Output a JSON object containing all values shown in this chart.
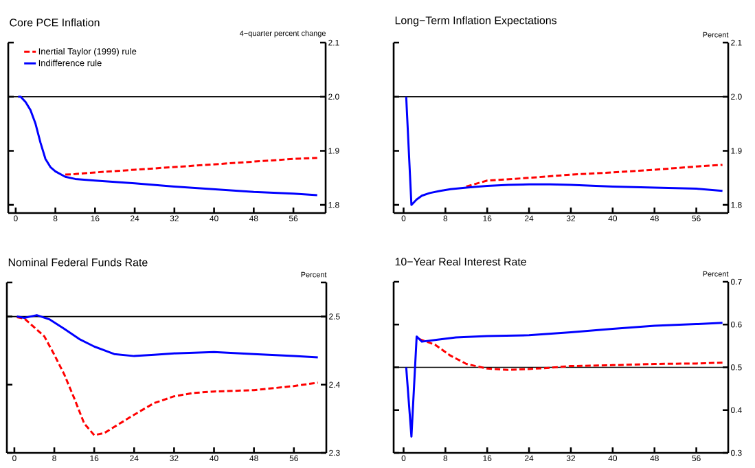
{
  "chart_data": [
    {
      "type": "line",
      "title": "Core PCE Inflation",
      "ylabel": "4−quarter percent change",
      "legend": "top left",
      "xlim": [
        -1.5,
        62.5
      ],
      "xticks": [
        0,
        8,
        16,
        24,
        32,
        40,
        48,
        56
      ],
      "ylim": [
        1.785,
        2.1
      ],
      "yticks": [
        {
          "value": 1.8,
          "label": "1.8"
        },
        {
          "value": 1.9,
          "label": "1.9"
        },
        {
          "value": 2.0,
          "label": "2.0"
        },
        {
          "value": 2.1,
          "label": "2.1"
        }
      ],
      "ref_lines": [
        {
          "axis": "y",
          "value": 2.0,
          "color": "#000000"
        }
      ],
      "series": [
        {
          "name": "Inertial Taylor (1999) rule",
          "color": "#ff0000",
          "line_style": "dashed",
          "x": [
            10,
            12,
            16,
            24,
            32,
            40,
            48,
            56,
            60.8
          ],
          "values": [
            1.856,
            1.857,
            1.86,
            1.865,
            1.87,
            1.875,
            1.88,
            1.885,
            1.887
          ]
        },
        {
          "name": "Indifference rule",
          "color": "#0000ff",
          "line_style": "solid",
          "x": [
            0.5,
            1,
            2,
            3,
            4,
            5,
            6,
            7,
            8,
            10,
            12,
            16,
            24,
            32,
            40,
            48,
            56,
            60.8
          ],
          "values": [
            2.0,
            2.0,
            1.99,
            1.975,
            1.95,
            1.915,
            1.885,
            1.87,
            1.862,
            1.852,
            1.848,
            1.845,
            1.84,
            1.834,
            1.829,
            1.824,
            1.821,
            1.818
          ]
        }
      ]
    },
    {
      "type": "line",
      "title": "Long−Term Inflation Expectations",
      "ylabel": "Percent",
      "xlim": [
        -1.9,
        62.1
      ],
      "xticks": [
        0,
        8,
        16,
        24,
        32,
        40,
        48,
        56
      ],
      "ylim": [
        1.785,
        2.1
      ],
      "yticks": [
        {
          "value": 1.8,
          "label": "1.8"
        },
        {
          "value": 1.9,
          "label": "1.9"
        },
        {
          "value": 2.0,
          "label": "2.0"
        },
        {
          "value": 2.1,
          "label": "2.1"
        }
      ],
      "ref_lines": [
        {
          "axis": "y",
          "value": 2.0,
          "color": "#000000"
        }
      ],
      "series": [
        {
          "color": "#ff0000",
          "line_style": "dashed",
          "x": [
            12,
            16,
            24,
            32,
            40,
            48,
            56,
            61
          ],
          "values": [
            1.834,
            1.845,
            1.85,
            1.856,
            1.86,
            1.865,
            1.871,
            1.874
          ]
        },
        {
          "color": "#0000ff",
          "line_style": "solid",
          "x": [
            0.5,
            1.5,
            2.5,
            3.5,
            5,
            7,
            9,
            12,
            16,
            20,
            24,
            28,
            32,
            40,
            48,
            56,
            61
          ],
          "values": [
            2.0,
            1.8,
            1.81,
            1.817,
            1.822,
            1.826,
            1.829,
            1.832,
            1.835,
            1.837,
            1.838,
            1.838,
            1.837,
            1.834,
            1.832,
            1.83,
            1.826
          ]
        }
      ]
    },
    {
      "type": "line",
      "title": "Nominal Federal Funds Rate",
      "ylabel": "Percent",
      "xlim": [
        -1.5,
        62.5
      ],
      "xticks": [
        0,
        8,
        16,
        24,
        32,
        40,
        48,
        56
      ],
      "ylim": [
        2.3,
        2.55
      ],
      "yticks": [
        {
          "value": 2.3,
          "label": "2.3"
        },
        {
          "value": 2.4,
          "label": "2.4"
        },
        {
          "value": 2.5,
          "label": "2.5"
        },
        {
          "value": 2.55,
          "label": null
        }
      ],
      "ref_lines": [
        {
          "axis": "y",
          "value": 2.5,
          "color": "#000000"
        }
      ],
      "series": [
        {
          "color": "#ff0000",
          "line_style": "dashed",
          "x": [
            0.5,
            2,
            4,
            6,
            8,
            10,
            12,
            14,
            16,
            18,
            20,
            24,
            28,
            32,
            36,
            40,
            48,
            56,
            60.8
          ],
          "values": [
            2.499,
            2.497,
            2.484,
            2.471,
            2.444,
            2.415,
            2.38,
            2.343,
            2.326,
            2.329,
            2.338,
            2.356,
            2.373,
            2.383,
            2.388,
            2.39,
            2.392,
            2.398,
            2.403
          ]
        },
        {
          "color": "#0000ff",
          "line_style": "solid",
          "x": [
            0.5,
            2,
            4.5,
            7,
            10,
            13,
            16,
            20,
            24,
            28,
            32,
            40,
            48,
            56,
            60.8
          ],
          "values": [
            2.5,
            2.498,
            2.502,
            2.496,
            2.482,
            2.467,
            2.456,
            2.445,
            2.442,
            2.444,
            2.446,
            2.448,
            2.445,
            2.442,
            2.44
          ]
        }
      ]
    },
    {
      "type": "line",
      "title": "10−Year Real Interest Rate",
      "ylabel": "Percent",
      "xlim": [
        -1.9,
        62.1
      ],
      "xticks": [
        0,
        8,
        16,
        24,
        32,
        40,
        48,
        56
      ],
      "ylim": [
        0.3,
        0.7
      ],
      "yticks": [
        {
          "value": 0.3,
          "label": "0.3"
        },
        {
          "value": 0.4,
          "label": "0.4"
        },
        {
          "value": 0.5,
          "label": "0.5"
        },
        {
          "value": 0.6,
          "label": "0.6"
        },
        {
          "value": 0.7,
          "label": "0.7"
        }
      ],
      "ref_lines": [
        {
          "axis": "y",
          "value": 0.5,
          "color": "#000000"
        }
      ],
      "series": [
        {
          "color": "#ff0000",
          "line_style": "dashed",
          "x": [
            3,
            6,
            9,
            12,
            16,
            20,
            24,
            28,
            32,
            40,
            48,
            56,
            61
          ],
          "values": [
            0.566,
            0.553,
            0.527,
            0.508,
            0.497,
            0.494,
            0.496,
            0.499,
            0.503,
            0.505,
            0.508,
            0.509,
            0.511
          ]
        },
        {
          "color": "#0000ff",
          "line_style": "solid",
          "x": [
            0.5,
            1.5,
            2.5,
            3.5,
            6,
            10,
            16,
            24,
            32,
            40,
            48,
            56,
            61
          ],
          "values": [
            0.5,
            0.338,
            0.572,
            0.56,
            0.564,
            0.57,
            0.573,
            0.575,
            0.582,
            0.59,
            0.597,
            0.601,
            0.604
          ]
        }
      ]
    }
  ]
}
